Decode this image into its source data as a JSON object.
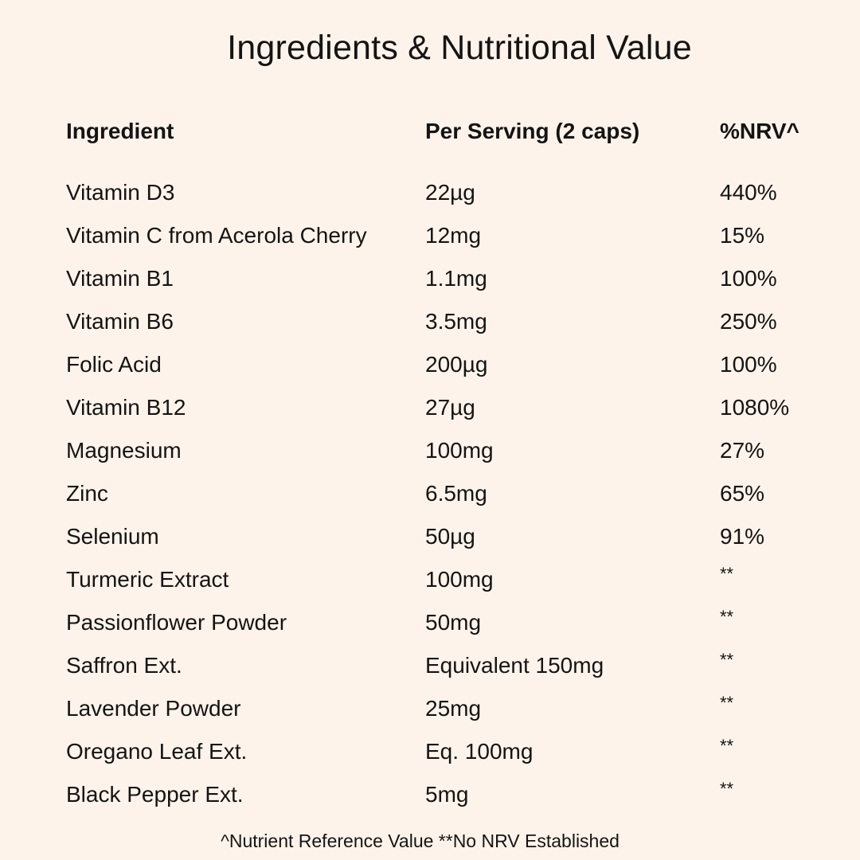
{
  "title": "Ingredients & Nutritional Value",
  "headers": {
    "ingredient": "Ingredient",
    "per_serving": "Per Serving (2 caps)",
    "nrv": "%NRV^"
  },
  "rows": [
    {
      "ingredient": "Vitamin D3",
      "per_serving": "22µg",
      "nrv": "440%"
    },
    {
      "ingredient": "Vitamin C from Acerola Cherry",
      "per_serving": "12mg",
      "nrv": "15%"
    },
    {
      "ingredient": "Vitamin B1",
      "per_serving": "1.1mg",
      "nrv": "100%"
    },
    {
      "ingredient": "Vitamin B6",
      "per_serving": "3.5mg",
      "nrv": "250%"
    },
    {
      "ingredient": "Folic Acid",
      "per_serving": "200µg",
      "nrv": "100%"
    },
    {
      "ingredient": "Vitamin B12",
      "per_serving": "27µg",
      "nrv": "1080%"
    },
    {
      "ingredient": "Magnesium",
      "per_serving": "100mg",
      "nrv": "27%"
    },
    {
      "ingredient": "Zinc",
      "per_serving": "6.5mg",
      "nrv": "65%"
    },
    {
      "ingredient": "Selenium",
      "per_serving": "50µg",
      "nrv": "91%"
    },
    {
      "ingredient": "Turmeric Extract",
      "per_serving": "100mg",
      "nrv": "**"
    },
    {
      "ingredient": "Passionflower Powder",
      "per_serving": "50mg",
      "nrv": "**"
    },
    {
      "ingredient": "Saffron Ext.",
      "per_serving": "Equivalent 150mg",
      "nrv": "**"
    },
    {
      "ingredient": "Lavender Powder",
      "per_serving": "25mg",
      "nrv": "**"
    },
    {
      "ingredient": "Oregano Leaf Ext.",
      "per_serving": "Eq. 100mg",
      "nrv": "**"
    },
    {
      "ingredient": "Black Pepper Ext.",
      "per_serving": "5mg",
      "nrv": "**"
    }
  ],
  "footnote": "^Nutrient Reference Value **No NRV Established",
  "colors": {
    "background": "#fdf3ea",
    "text": "#141414"
  }
}
